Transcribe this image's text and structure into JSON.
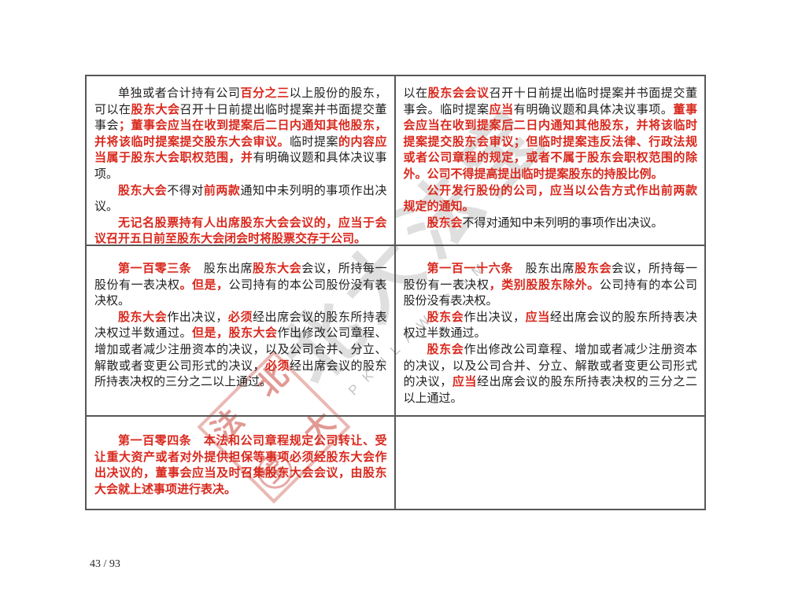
{
  "colors": {
    "revision_red": "#d9291e",
    "body_text": "#202020",
    "table_border": "#575757",
    "stamp_pink": "#dd8d84",
    "watermark_gray": "#949494"
  },
  "watermark": {
    "brush_text": "北大法宝",
    "letters_text": "PKULAW.COM",
    "stamp": {
      "top": "北",
      "left": "法",
      "right": "大",
      "bottom": "宝"
    }
  },
  "footer": {
    "page_indicator": "43 / 93"
  },
  "table": {
    "rows": [
      {
        "cells": [
          {
            "paragraphs": [
              {
                "indent": true,
                "segments": [
                  {
                    "text": "单独或者合计持有公司",
                    "red": false
                  },
                  {
                    "text": "百分之三",
                    "red": true
                  },
                  {
                    "text": "以上股份的股东，可以在",
                    "red": false
                  },
                  {
                    "text": "股东大会",
                    "red": true
                  },
                  {
                    "text": "召开十日前提出临时提案并书面提交董事会",
                    "red": false
                  },
                  {
                    "text": "；董事会应当在收到提案后二日内通知其他股东，并将该临时提案提交股东大会审议。",
                    "red": true
                  },
                  {
                    "text": "临时提案",
                    "red": false
                  },
                  {
                    "text": "的内容应当属于股东大会职权范围，并",
                    "red": true
                  },
                  {
                    "text": "有明确议题和具体决议事项。",
                    "red": false
                  }
                ]
              },
              {
                "indent": true,
                "segments": [
                  {
                    "text": "股东大会",
                    "red": true
                  },
                  {
                    "text": "不得对",
                    "red": false
                  },
                  {
                    "text": "前两款",
                    "red": true
                  },
                  {
                    "text": "通知中未列明的事项作出决议。",
                    "red": false
                  }
                ]
              },
              {
                "indent": true,
                "segments": [
                  {
                    "text": "无记名股票持有人出席股东大会会议的，应当于会议召开五日前至股东大会闭会时将股票交存于公司。",
                    "red": true
                  }
                ]
              }
            ]
          },
          {
            "paragraphs": [
              {
                "indent": false,
                "segments": [
                  {
                    "text": "以在",
                    "red": false
                  },
                  {
                    "text": "股东会会议",
                    "red": true
                  },
                  {
                    "text": "召开十日前提出临时提案并书面提交董事会。临时提案",
                    "red": false
                  },
                  {
                    "text": "应当",
                    "red": true
                  },
                  {
                    "text": "有明确议题和具体决议事项。",
                    "red": false
                  },
                  {
                    "text": "董事会应当在收到提案后二日内通知其他股东，并将该临时提案提交股东会审议；但临时提案违反法律、行政法规或者公司章程的规定，或者不属于股东会职权范围的除外。公司不得提高提出临时提案股东的持股比例。",
                    "red": true
                  }
                ]
              },
              {
                "indent": true,
                "segments": [
                  {
                    "text": "公开发行股份的公司，应当以公告方式作出前两款规定的通知。",
                    "red": true
                  }
                ]
              },
              {
                "indent": true,
                "segments": [
                  {
                    "text": "股东会",
                    "red": true
                  },
                  {
                    "text": "不得对通知中未列明的事项作出决议。",
                    "red": false
                  }
                ]
              }
            ]
          }
        ]
      },
      {
        "cells": [
          {
            "paragraphs": [
              {
                "indent": true,
                "segments": [
                  {
                    "text": "第一百零三条",
                    "red": true
                  },
                  {
                    "text": "　股东出席",
                    "red": false
                  },
                  {
                    "text": "股东大会",
                    "red": true
                  },
                  {
                    "text": "会议，所持每一股份有一表决权",
                    "red": false
                  },
                  {
                    "text": "。但是，",
                    "red": true
                  },
                  {
                    "text": "公司持有的本公司股份没有表决权。",
                    "red": false
                  }
                ]
              },
              {
                "indent": true,
                "segments": [
                  {
                    "text": "股东大会",
                    "red": true
                  },
                  {
                    "text": "作出决议，",
                    "red": false
                  },
                  {
                    "text": "必须",
                    "red": true
                  },
                  {
                    "text": "经出席会议的股东所持表决权过半数通过。",
                    "red": false
                  },
                  {
                    "text": "但是，股东大会",
                    "red": true
                  },
                  {
                    "text": "作出修改公司章程、增加或者减少注册资本的决议，以及公司合并、分立、解散或者变更公司形式的决议，",
                    "red": false
                  },
                  {
                    "text": "必须",
                    "red": true
                  },
                  {
                    "text": "经出席会议的股东所持表决权的三分之二以上通过。",
                    "red": false
                  }
                ]
              }
            ]
          },
          {
            "paragraphs": [
              {
                "indent": true,
                "segments": [
                  {
                    "text": "第一百一十六条",
                    "red": true
                  },
                  {
                    "text": "　股东出席",
                    "red": false
                  },
                  {
                    "text": "股东会",
                    "red": true
                  },
                  {
                    "text": "会议，所持每一股份有一表决权",
                    "red": false
                  },
                  {
                    "text": "，类别股股东除外。",
                    "red": true
                  },
                  {
                    "text": "公司持有的本公司股份没有表决权。",
                    "red": false
                  }
                ]
              },
              {
                "indent": true,
                "segments": [
                  {
                    "text": "股东会",
                    "red": true
                  },
                  {
                    "text": "作出决议，",
                    "red": false
                  },
                  {
                    "text": "应当",
                    "red": true
                  },
                  {
                    "text": "经出席会议的股东所持表决权过半数通过。",
                    "red": false
                  }
                ]
              },
              {
                "indent": true,
                "segments": [
                  {
                    "text": "股东会",
                    "red": true
                  },
                  {
                    "text": "作出修改公司章程、增加或者减少注册资本的决议，以及公司合并、分立、解散或者变更公司形式的决议，",
                    "red": false
                  },
                  {
                    "text": "应当",
                    "red": true
                  },
                  {
                    "text": "经出席会议的股东所持表决权的三分之二以上通过。",
                    "red": false
                  }
                ]
              }
            ]
          }
        ]
      },
      {
        "cells": [
          {
            "paragraphs": [
              {
                "indent": true,
                "segments": [
                  {
                    "text": "第一百零四条　本法和公司章程规定公司转让、受让重大资产或者对外提供担保等事项必须经股东大会作出决议的，董事会应当及时召集股东大会会议，由股东大会就上述事项进行表决。",
                    "red": true
                  }
                ]
              }
            ]
          },
          {
            "paragraphs": []
          }
        ]
      }
    ]
  }
}
